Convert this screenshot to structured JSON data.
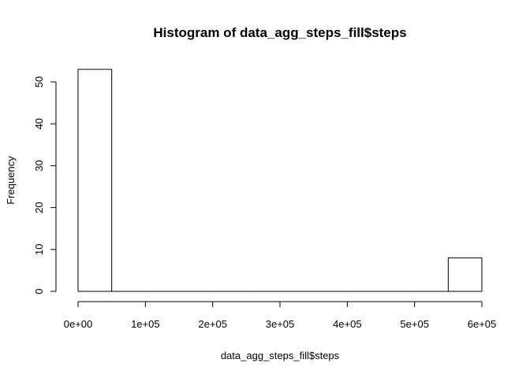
{
  "chart_data": {
    "type": "bar",
    "title": "Histogram of data_agg_steps_fill$steps",
    "xlabel": "data_agg_steps_fill$steps",
    "ylabel": "Frequency",
    "xlim": [
      0,
      600000
    ],
    "ylim": [
      0,
      50
    ],
    "x_ticks": [
      "0e+00",
      "1e+05",
      "2e+05",
      "3e+05",
      "4e+05",
      "5e+05",
      "6e+05"
    ],
    "y_ticks": [
      "0",
      "10",
      "20",
      "30",
      "40",
      "50"
    ],
    "bins": [
      {
        "start": 0,
        "end": 50000,
        "count": 53
      },
      {
        "start": 50000,
        "end": 100000,
        "count": 0
      },
      {
        "start": 100000,
        "end": 150000,
        "count": 0
      },
      {
        "start": 150000,
        "end": 200000,
        "count": 0
      },
      {
        "start": 200000,
        "end": 250000,
        "count": 0
      },
      {
        "start": 250000,
        "end": 300000,
        "count": 0
      },
      {
        "start": 300000,
        "end": 350000,
        "count": 0
      },
      {
        "start": 350000,
        "end": 400000,
        "count": 0
      },
      {
        "start": 400000,
        "end": 450000,
        "count": 0
      },
      {
        "start": 450000,
        "end": 500000,
        "count": 0
      },
      {
        "start": 500000,
        "end": 550000,
        "count": 0
      },
      {
        "start": 550000,
        "end": 600000,
        "count": 8
      }
    ],
    "grid": false,
    "legend": "none"
  }
}
